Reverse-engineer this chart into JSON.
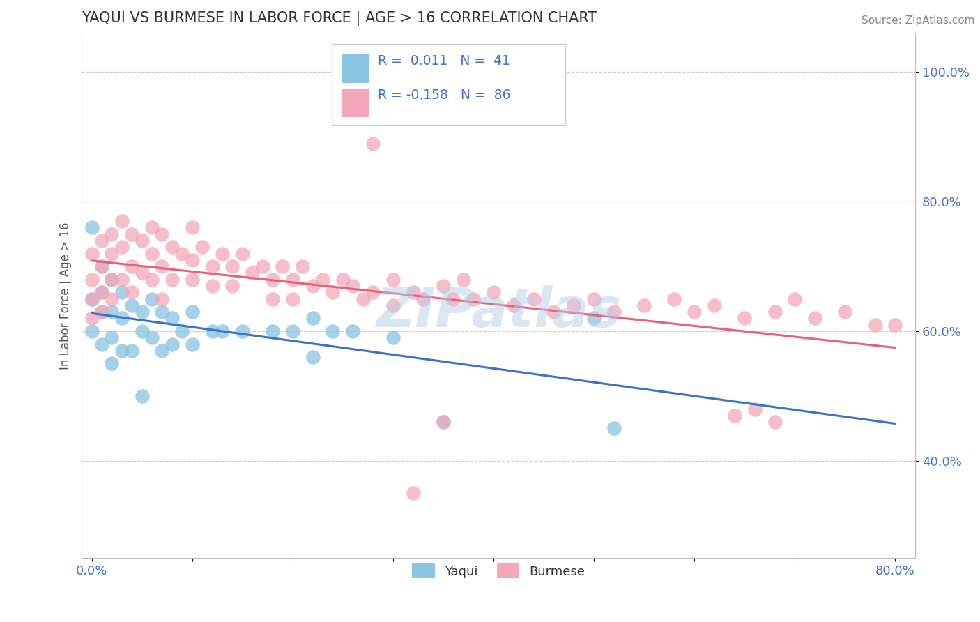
{
  "title": "YAQUI VS BURMESE IN LABOR FORCE | AGE > 16 CORRELATION CHART",
  "source_text": "Source: ZipAtlas.com",
  "ylabel": "In Labor Force | Age > 16",
  "watermark": "ZIPatlas",
  "xlim": [
    -0.01,
    0.82
  ],
  "ylim": [
    0.25,
    1.06
  ],
  "xtick_positions": [
    0.0,
    0.1,
    0.2,
    0.3,
    0.4,
    0.5,
    0.6,
    0.7,
    0.8
  ],
  "xticklabels": [
    "0.0%",
    "",
    "",
    "",
    "",
    "",
    "",
    "",
    "80.0%"
  ],
  "ytick_positions": [
    0.4,
    0.6,
    0.8,
    1.0
  ],
  "yticklabels": [
    "40.0%",
    "60.0%",
    "80.0%",
    "100.0%"
  ],
  "yaqui_color": "#89c4e1",
  "burmese_color": "#f4a7b9",
  "yaqui_line_color": "#3a75c4",
  "burmese_line_color": "#e8607a",
  "legend_R_yaqui": "0.011",
  "legend_N_yaqui": "41",
  "legend_R_burmese": "-0.158",
  "legend_N_burmese": "86",
  "grid_color": "#cccccc",
  "background_color": "#ffffff",
  "title_color": "#333333",
  "axis_label_color": "#4472c4",
  "yaqui_label": "Yaqui",
  "burmese_label": "Burmese",
  "yaqui_x": [
    0.0,
    0.0,
    0.0,
    0.01,
    0.01,
    0.01,
    0.01,
    0.02,
    0.02,
    0.02,
    0.02,
    0.03,
    0.03,
    0.03,
    0.04,
    0.04,
    0.05,
    0.05,
    0.05,
    0.06,
    0.06,
    0.07,
    0.07,
    0.08,
    0.08,
    0.09,
    0.1,
    0.1,
    0.12,
    0.13,
    0.15,
    0.18,
    0.2,
    0.22,
    0.22,
    0.24,
    0.26,
    0.3,
    0.35,
    0.5,
    0.52
  ],
  "yaqui_y": [
    0.76,
    0.65,
    0.6,
    0.7,
    0.66,
    0.63,
    0.58,
    0.68,
    0.63,
    0.59,
    0.55,
    0.66,
    0.62,
    0.57,
    0.64,
    0.57,
    0.63,
    0.6,
    0.5,
    0.65,
    0.59,
    0.63,
    0.57,
    0.62,
    0.58,
    0.6,
    0.63,
    0.58,
    0.6,
    0.6,
    0.6,
    0.6,
    0.6,
    0.62,
    0.56,
    0.6,
    0.6,
    0.59,
    0.46,
    0.62,
    0.45
  ],
  "burmese_x": [
    0.0,
    0.0,
    0.0,
    0.0,
    0.01,
    0.01,
    0.01,
    0.01,
    0.02,
    0.02,
    0.02,
    0.02,
    0.03,
    0.03,
    0.03,
    0.04,
    0.04,
    0.04,
    0.05,
    0.05,
    0.06,
    0.06,
    0.06,
    0.07,
    0.07,
    0.07,
    0.08,
    0.08,
    0.09,
    0.1,
    0.1,
    0.1,
    0.11,
    0.12,
    0.12,
    0.13,
    0.14,
    0.14,
    0.15,
    0.16,
    0.17,
    0.18,
    0.18,
    0.19,
    0.2,
    0.2,
    0.21,
    0.22,
    0.23,
    0.24,
    0.25,
    0.26,
    0.27,
    0.28,
    0.3,
    0.3,
    0.32,
    0.33,
    0.35,
    0.36,
    0.37,
    0.38,
    0.4,
    0.42,
    0.44,
    0.46,
    0.48,
    0.5,
    0.52,
    0.55,
    0.58,
    0.6,
    0.62,
    0.65,
    0.68,
    0.7,
    0.72,
    0.75,
    0.78,
    0.8,
    0.64,
    0.66,
    0.68,
    0.35,
    0.28,
    0.32
  ],
  "burmese_y": [
    0.72,
    0.68,
    0.65,
    0.62,
    0.74,
    0.7,
    0.66,
    0.63,
    0.75,
    0.72,
    0.68,
    0.65,
    0.77,
    0.73,
    0.68,
    0.75,
    0.7,
    0.66,
    0.74,
    0.69,
    0.76,
    0.72,
    0.68,
    0.75,
    0.7,
    0.65,
    0.73,
    0.68,
    0.72,
    0.76,
    0.71,
    0.68,
    0.73,
    0.7,
    0.67,
    0.72,
    0.7,
    0.67,
    0.72,
    0.69,
    0.7,
    0.68,
    0.65,
    0.7,
    0.68,
    0.65,
    0.7,
    0.67,
    0.68,
    0.66,
    0.68,
    0.67,
    0.65,
    0.66,
    0.68,
    0.64,
    0.66,
    0.65,
    0.67,
    0.65,
    0.68,
    0.65,
    0.66,
    0.64,
    0.65,
    0.63,
    0.64,
    0.65,
    0.63,
    0.64,
    0.65,
    0.63,
    0.64,
    0.62,
    0.63,
    0.65,
    0.62,
    0.63,
    0.61,
    0.61,
    0.47,
    0.48,
    0.46,
    0.46,
    0.89,
    0.35
  ]
}
